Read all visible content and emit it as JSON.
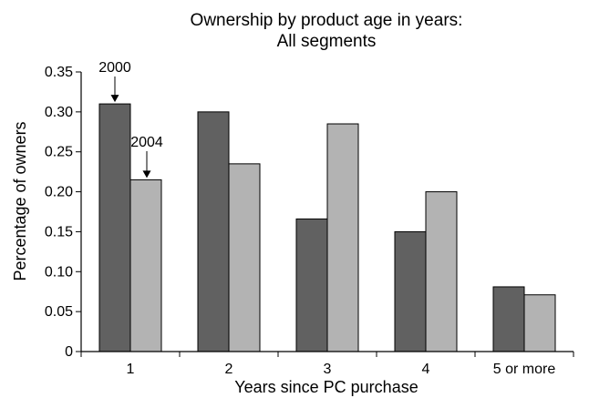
{
  "chart_data": {
    "type": "bar",
    "title_lines": [
      "Ownership by product age in years:",
      "All segments"
    ],
    "xlabel": "Years since PC purchase",
    "ylabel": "Percentage of owners",
    "categories": [
      "1",
      "2",
      "3",
      "4",
      "5 or more"
    ],
    "series": [
      {
        "name": "2000",
        "values": [
          0.31,
          0.3,
          0.166,
          0.15,
          0.081
        ],
        "color": "#616161"
      },
      {
        "name": "2004",
        "values": [
          0.215,
          0.235,
          0.285,
          0.2,
          0.071
        ],
        "color": "#b3b3b3"
      }
    ],
    "ylim": [
      0,
      0.35
    ],
    "yticks": [
      0,
      0.05,
      0.1,
      0.15,
      0.2,
      0.25,
      0.3,
      0.35
    ],
    "ytick_labels": [
      "0",
      "0.05",
      "0.10",
      "0.15",
      "0.20",
      "0.25",
      "0.30",
      "0.35"
    ],
    "grid": false,
    "legend": "none",
    "annotations": [
      {
        "text": "2000",
        "series": 0,
        "category": 0
      },
      {
        "text": "2004",
        "series": 1,
        "category": 0
      }
    ]
  }
}
